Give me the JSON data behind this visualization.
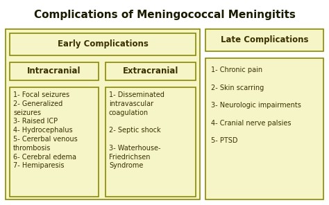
{
  "title": "Complications of Meningococcal Meningitits",
  "title_fontsize": 11,
  "bg_color": "#ffffff",
  "box_fill": "#f5f5c8",
  "box_edge": "#8a8a00",
  "early_header": "Early Complications",
  "late_header": "Late Complications",
  "intracranial_header": "Intracranial",
  "extracranial_header": "Extracranial",
  "intracranial_items": "1- Focal seizures\n2- Generalized\nseizures\n3- Raised ICP\n4- Hydrocephalus\n5- Cererbal venous\nthrombosis\n6- Cerebral edema\n7- Hemiparesis",
  "extracranial_items": "1- Disseminated\nintravascular\ncoagulation\n\n2- Septic shock\n\n3- Waterhouse-\nFriedrichsen\nSyndrome",
  "late_items": "1- Chronic pain\n\n2- Skin scarring\n\n3- Neurologic impairments\n\n4- Cranial nerve palsies\n\n5- PTSD",
  "header_fontsize": 8.5,
  "body_fontsize": 7,
  "text_color": "#3a3000"
}
